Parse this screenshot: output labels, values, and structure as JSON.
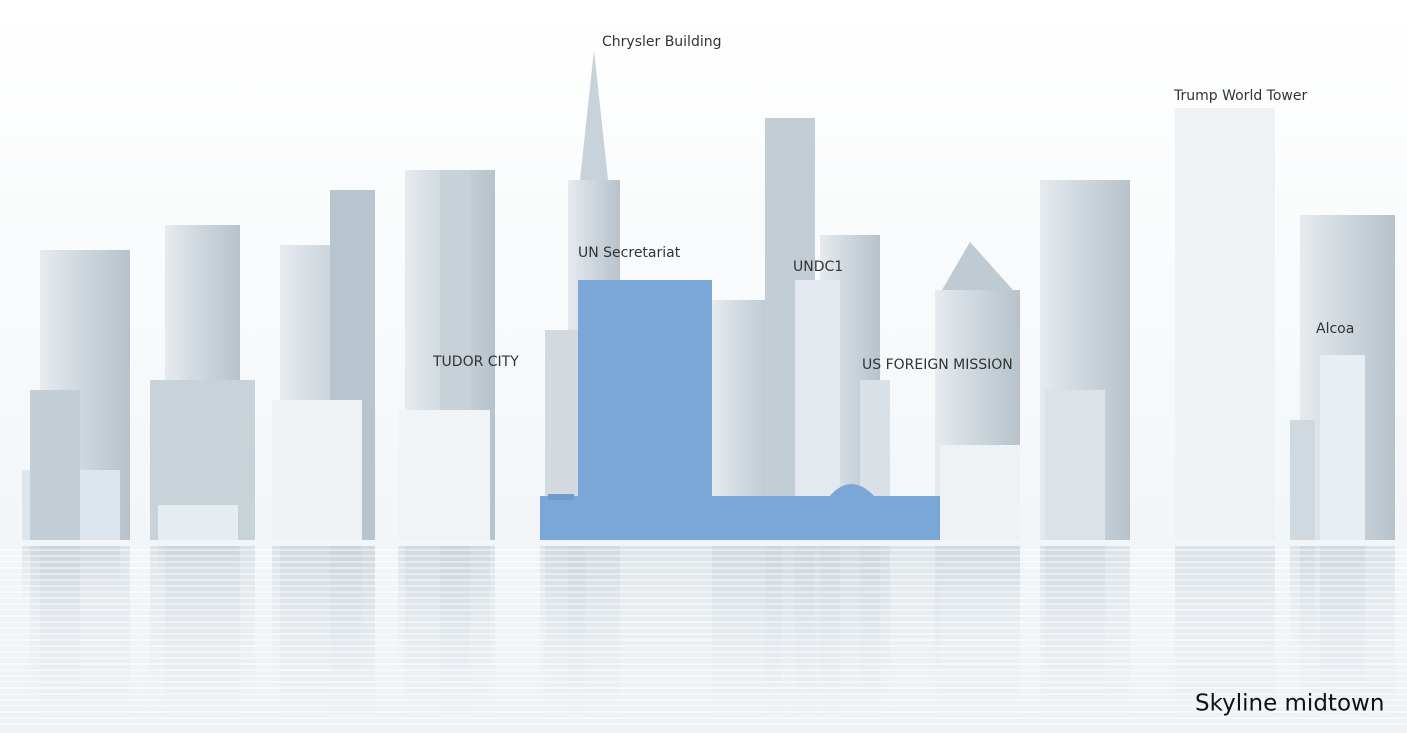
{
  "labels": [
    "Chrysler Building",
    "Trump World Tower",
    "UN Secretariat",
    "UNDC1",
    "TUDOR CITY",
    "US FOREIGN MISSION",
    "Alcoa"
  ],
  "caption": "Skyline midtown"
}
